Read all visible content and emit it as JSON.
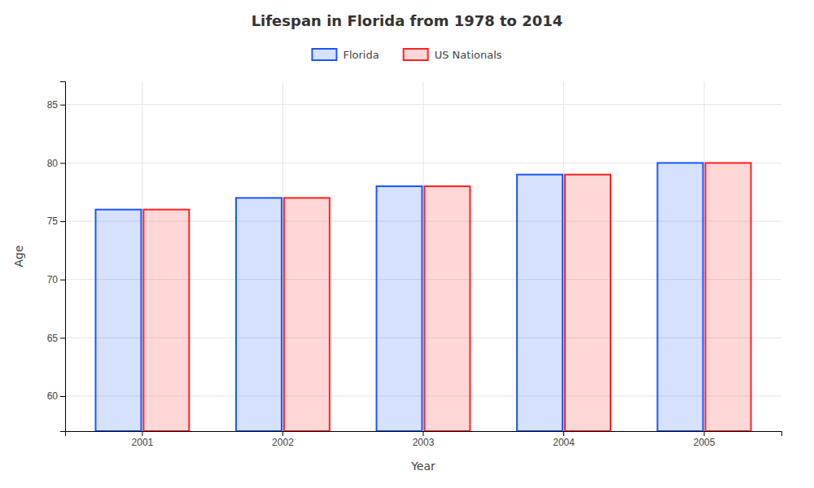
{
  "chart_data": {
    "type": "bar",
    "title": "Lifespan in Florida from 1978 to 2014",
    "xlabel": "Year",
    "ylabel": "Age",
    "categories": [
      "2001",
      "2002",
      "2003",
      "2004",
      "2005"
    ],
    "series": [
      {
        "name": "Florida",
        "color": "#1a56ff",
        "values": [
          76,
          77,
          78,
          79,
          80
        ]
      },
      {
        "name": "US Nationals",
        "color": "#ff2222",
        "values": [
          76,
          77,
          78,
          79,
          80
        ]
      }
    ],
    "ylim": [
      57,
      87
    ],
    "yticks": [
      60,
      65,
      70,
      75,
      80,
      85
    ],
    "grid": true,
    "legend": "top"
  }
}
